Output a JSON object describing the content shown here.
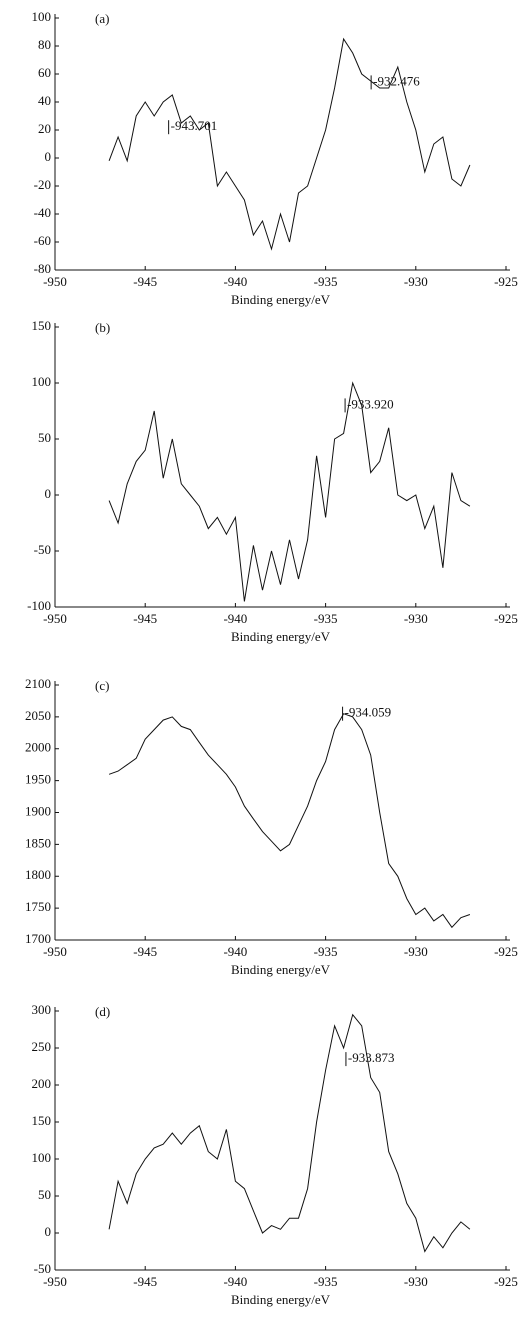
{
  "chart_data": [
    {
      "type": "line",
      "label": "(a)",
      "x_label": "Binding energy/eV",
      "x": [
        -947,
        -946.5,
        -946,
        -945.5,
        -945,
        -944.5,
        -944,
        -943.5,
        -943,
        -942.5,
        -942,
        -941.5,
        -941,
        -940.5,
        -940,
        -939.5,
        -939,
        -938.5,
        -938,
        -937.5,
        -937,
        -936.5,
        -936,
        -935.5,
        -935,
        -934.5,
        -934,
        -933.5,
        -933,
        -932.5,
        -932,
        -931.5,
        -931,
        -930.5,
        -930,
        -929.5,
        -929,
        -928.5,
        -928,
        -927.5,
        -927
      ],
      "values": [
        -2,
        15,
        -2,
        30,
        40,
        30,
        40,
        45,
        25,
        30,
        20,
        25,
        -20,
        -10,
        -20,
        -30,
        -55,
        -45,
        -65,
        -40,
        -60,
        -25,
        -20,
        0,
        20,
        50,
        85,
        75,
        60,
        55,
        50,
        50,
        65,
        40,
        20,
        -10,
        10,
        15,
        -15,
        -20,
        -5
      ],
      "color": "#111111",
      "xlim": [
        -950,
        -925
      ],
      "xticks": [
        -950,
        -945,
        -940,
        -935,
        -930,
        -925
      ],
      "ylim": [
        -80,
        100
      ],
      "yticks": [
        -80,
        -60,
        -40,
        -20,
        0,
        20,
        40,
        60,
        80,
        100
      ],
      "annotations": [
        {
          "text": "-943.701",
          "x": -943.701,
          "y": 22
        },
        {
          "text": "-932.476",
          "x": -932.476,
          "y": 54
        }
      ]
    },
    {
      "type": "line",
      "label": "(b)",
      "x_label": "Binding energy/eV",
      "x": [
        -947,
        -946.5,
        -946,
        -945.5,
        -945,
        -944.5,
        -944,
        -943.5,
        -943,
        -942.5,
        -942,
        -941.5,
        -941,
        -940.5,
        -940,
        -939.5,
        -939,
        -938.5,
        -938,
        -937.5,
        -937,
        -936.5,
        -936,
        -935.5,
        -935,
        -934.5,
        -934,
        -933.5,
        -933,
        -932.5,
        -932,
        -931.5,
        -931,
        -930.5,
        -930,
        -929.5,
        -929,
        -928.5,
        -928,
        -927.5,
        -927
      ],
      "values": [
        -5,
        -25,
        10,
        30,
        40,
        75,
        15,
        50,
        10,
        0,
        -10,
        -30,
        -20,
        -35,
        -20,
        -95,
        -45,
        -85,
        -50,
        -80,
        -40,
        -75,
        -40,
        35,
        -20,
        50,
        55,
        100,
        80,
        20,
        30,
        60,
        0,
        -5,
        0,
        -30,
        -10,
        -65,
        20,
        -5,
        -10
      ],
      "color": "#111111",
      "xlim": [
        -950,
        -925
      ],
      "xticks": [
        -950,
        -945,
        -940,
        -935,
        -930,
        -925
      ],
      "ylim": [
        -100,
        150
      ],
      "yticks": [
        -100,
        -50,
        0,
        50,
        100,
        150
      ],
      "annotations": [
        {
          "text": "-933.920",
          "x": -933.92,
          "y": 80
        }
      ]
    },
    {
      "type": "line",
      "label": "(c)",
      "x_label": "Binding energy/eV",
      "x": [
        -947,
        -946.5,
        -946,
        -945.5,
        -945,
        -944.5,
        -944,
        -943.5,
        -943,
        -942.5,
        -942,
        -941.5,
        -941,
        -940.5,
        -940,
        -939.5,
        -939,
        -938.5,
        -938,
        -937.5,
        -937,
        -936.5,
        -936,
        -935.5,
        -935,
        -934.5,
        -934,
        -933.5,
        -933,
        -932.5,
        -932,
        -931.5,
        -931,
        -930.5,
        -930,
        -929.5,
        -929,
        -928.5,
        -928,
        -927.5,
        -927
      ],
      "values": [
        1960,
        1965,
        1975,
        1985,
        2015,
        2030,
        2045,
        2050,
        2035,
        2030,
        2010,
        1990,
        1975,
        1960,
        1940,
        1910,
        1890,
        1870,
        1855,
        1840,
        1850,
        1880,
        1910,
        1950,
        1980,
        2030,
        2055,
        2050,
        2030,
        1990,
        1900,
        1820,
        1800,
        1765,
        1740,
        1750,
        1730,
        1740,
        1720,
        1735,
        1740
      ],
      "color": "#111111",
      "xlim": [
        -950,
        -925
      ],
      "xticks": [
        -950,
        -945,
        -940,
        -935,
        -930,
        -925
      ],
      "ylim": [
        1700,
        2100
      ],
      "yticks": [
        1700,
        1750,
        1800,
        1850,
        1900,
        1950,
        2000,
        2050,
        2100
      ],
      "annotations": [
        {
          "text": "-934.059",
          "x": -934.059,
          "y": 2055
        }
      ]
    },
    {
      "type": "line",
      "label": "(d)",
      "x_label": "Binding energy/eV",
      "x": [
        -947,
        -946.5,
        -946,
        -945.5,
        -945,
        -944.5,
        -944,
        -943.5,
        -943,
        -942.5,
        -942,
        -941.5,
        -941,
        -940.5,
        -940,
        -939.5,
        -939,
        -938.5,
        -938,
        -937.5,
        -937,
        -936.5,
        -936,
        -935.5,
        -935,
        -934.5,
        -934,
        -933.5,
        -933,
        -932.5,
        -932,
        -931.5,
        -931,
        -930.5,
        -930,
        -929.5,
        -929,
        -928.5,
        -928,
        -927.5,
        -927
      ],
      "values": [
        5,
        70,
        40,
        80,
        100,
        115,
        120,
        135,
        120,
        135,
        145,
        110,
        100,
        140,
        70,
        60,
        30,
        0,
        10,
        5,
        20,
        20,
        60,
        150,
        220,
        280,
        250,
        295,
        280,
        210,
        190,
        110,
        80,
        40,
        20,
        -25,
        -5,
        -20,
        0,
        15,
        5
      ],
      "color": "#111111",
      "xlim": [
        -950,
        -925
      ],
      "xticks": [
        -950,
        -945,
        -940,
        -935,
        -930,
        -925
      ],
      "ylim": [
        -50,
        300
      ],
      "yticks": [
        -50,
        0,
        50,
        100,
        150,
        200,
        250,
        300
      ],
      "annotations": [
        {
          "text": "-933.873",
          "x": -933.873,
          "y": 235
        }
      ]
    }
  ]
}
